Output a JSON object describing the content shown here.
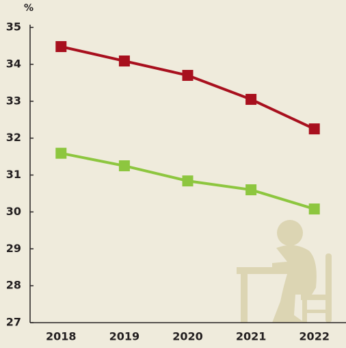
{
  "chart_data": {
    "type": "line",
    "y_unit_label": "%",
    "categories": [
      "2018",
      "2019",
      "2020",
      "2021",
      "2022"
    ],
    "series": [
      {
        "color": "#a8101e",
        "values": [
          34.48,
          34.09,
          33.7,
          33.05,
          32.25
        ]
      },
      {
        "color": "#8dc63f",
        "values": [
          31.59,
          31.25,
          30.84,
          30.6,
          30.08
        ]
      }
    ],
    "ylim": [
      27,
      35
    ],
    "yticks": [
      27,
      28,
      29,
      30,
      31,
      32,
      33,
      34,
      35
    ]
  }
}
